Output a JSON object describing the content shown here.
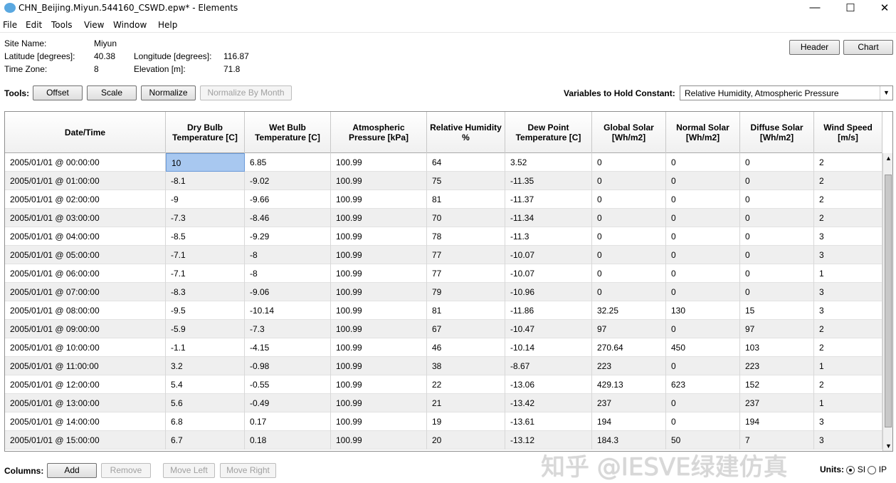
{
  "window": {
    "title": "CHN_Beijing.Miyun.544160_CSWD.epw* - Elements",
    "minimize": "—",
    "maximize": "☐",
    "close": "✕"
  },
  "menu": [
    "File",
    "Edit",
    "Tools",
    "View",
    "Window",
    "Help"
  ],
  "site": {
    "name_label": "Site Name:",
    "name": "Miyun",
    "lat_label": "Latitude [degrees]:",
    "lat": "40.38",
    "lon_label": "Longitude [degrees]:",
    "lon": "116.87",
    "tz_label": "Time Zone:",
    "tz": "8",
    "elev_label": "Elevation [m]:",
    "elev": "71.8"
  },
  "buttons": {
    "header": "Header",
    "chart": "Chart"
  },
  "tools": {
    "label": "Tools:",
    "offset": "Offset",
    "scale": "Scale",
    "normalize": "Normalize",
    "normalize_month": "Normalize By Month"
  },
  "hold": {
    "label": "Variables to Hold Constant:",
    "value": "Relative Humidity, Atmospheric Pressure"
  },
  "table": {
    "columns": [
      "Date/Time",
      "Dry Bulb Temperature [C]",
      "Wet Bulb Temperature [C]",
      "Atmospheric Pressure [kPa]",
      "Relative Humidity %",
      "Dew Point Temperature [C]",
      "Global Solar [Wh/m2]",
      "Normal Solar [Wh/m2]",
      "Diffuse Solar [Wh/m2]",
      "Wind Speed [m/s]"
    ],
    "rows": [
      [
        "2005/01/01 @ 00:00:00",
        "10",
        "6.85",
        "100.99",
        "64",
        "3.52",
        "0",
        "0",
        "0",
        "2"
      ],
      [
        "2005/01/01 @ 01:00:00",
        "-8.1",
        "-9.02",
        "100.99",
        "75",
        "-11.35",
        "0",
        "0",
        "0",
        "2"
      ],
      [
        "2005/01/01 @ 02:00:00",
        "-9",
        "-9.66",
        "100.99",
        "81",
        "-11.37",
        "0",
        "0",
        "0",
        "2"
      ],
      [
        "2005/01/01 @ 03:00:00",
        "-7.3",
        "-8.46",
        "100.99",
        "70",
        "-11.34",
        "0",
        "0",
        "0",
        "2"
      ],
      [
        "2005/01/01 @ 04:00:00",
        "-8.5",
        "-9.29",
        "100.99",
        "78",
        "-11.3",
        "0",
        "0",
        "0",
        "3"
      ],
      [
        "2005/01/01 @ 05:00:00",
        "-7.1",
        "-8",
        "100.99",
        "77",
        "-10.07",
        "0",
        "0",
        "0",
        "3"
      ],
      [
        "2005/01/01 @ 06:00:00",
        "-7.1",
        "-8",
        "100.99",
        "77",
        "-10.07",
        "0",
        "0",
        "0",
        "1"
      ],
      [
        "2005/01/01 @ 07:00:00",
        "-8.3",
        "-9.06",
        "100.99",
        "79",
        "-10.96",
        "0",
        "0",
        "0",
        "3"
      ],
      [
        "2005/01/01 @ 08:00:00",
        "-9.5",
        "-10.14",
        "100.99",
        "81",
        "-11.86",
        "32.25",
        "130",
        "15",
        "3"
      ],
      [
        "2005/01/01 @ 09:00:00",
        "-5.9",
        "-7.3",
        "100.99",
        "67",
        "-10.47",
        "97",
        "0",
        "97",
        "2"
      ],
      [
        "2005/01/01 @ 10:00:00",
        "-1.1",
        "-4.15",
        "100.99",
        "46",
        "-10.14",
        "270.64",
        "450",
        "103",
        "2"
      ],
      [
        "2005/01/01 @ 11:00:00",
        "3.2",
        "-0.98",
        "100.99",
        "38",
        "-8.67",
        "223",
        "0",
        "223",
        "1"
      ],
      [
        "2005/01/01 @ 12:00:00",
        "5.4",
        "-0.55",
        "100.99",
        "22",
        "-13.06",
        "429.13",
        "623",
        "152",
        "2"
      ],
      [
        "2005/01/01 @ 13:00:00",
        "5.6",
        "-0.49",
        "100.99",
        "21",
        "-13.42",
        "237",
        "0",
        "237",
        "1"
      ],
      [
        "2005/01/01 @ 14:00:00",
        "6.8",
        "0.17",
        "100.99",
        "19",
        "-13.61",
        "194",
        "0",
        "194",
        "3"
      ],
      [
        "2005/01/01 @ 15:00:00",
        "6.7",
        "0.18",
        "100.99",
        "20",
        "-13.12",
        "184.3",
        "50",
        "7",
        "3"
      ]
    ]
  },
  "columns_bar": {
    "label": "Columns:",
    "add": "Add",
    "remove": "Remove",
    "move_left": "Move Left",
    "move_right": "Move Right"
  },
  "units": {
    "label": "Units:",
    "si": "SI",
    "ip": "IP",
    "selected": "SI"
  },
  "watermark": "知乎 @IESVE绿建仿真"
}
